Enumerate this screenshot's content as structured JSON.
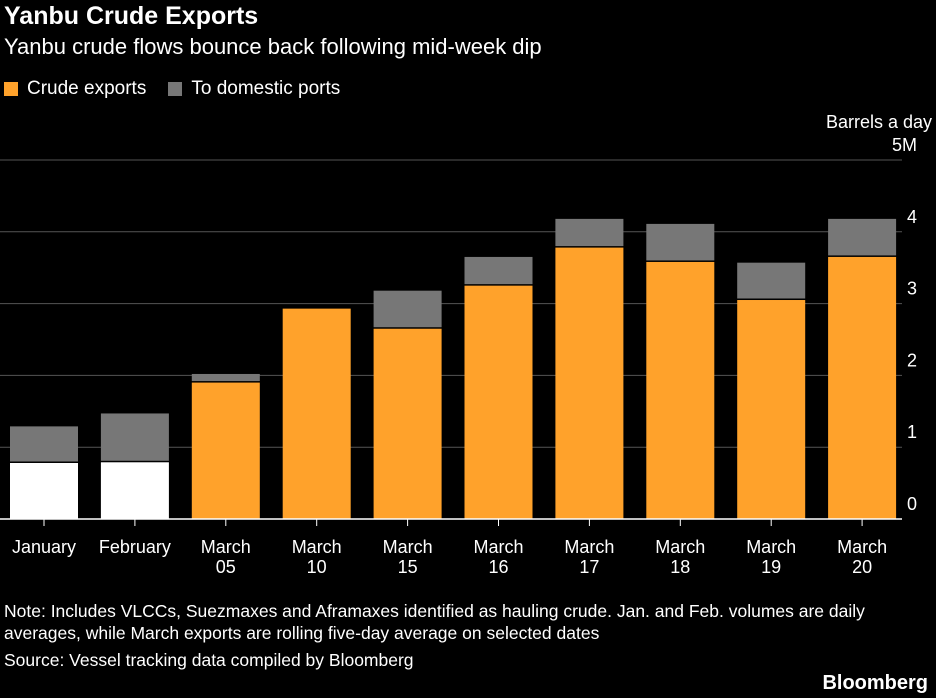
{
  "title": "Yanbu Crude Exports",
  "subtitle": "Yanbu crude flows bounce back following mid-week dip",
  "legend": [
    {
      "label": "Crude exports",
      "color": "#ffa22b"
    },
    {
      "label": "To domestic ports",
      "color": "#777777"
    }
  ],
  "unit_label": "Barrels a day",
  "note": "Note: Includes VLCCs, Suezmaxes and Aframaxes identified as hauling crude. Jan. and Feb. volumes are daily averages, while March exports are rolling five-day average on selected dates",
  "source": "Source: Vessel tracking data compiled by Bloomberg",
  "brand": "Bloomberg",
  "chart_data": {
    "type": "bar",
    "stacked": true,
    "title": "Yanbu Crude Exports",
    "ylabel": "Barrels a day",
    "ylim": [
      0,
      5
    ],
    "yticks": [
      {
        "value": 0,
        "label": "0"
      },
      {
        "value": 1,
        "label": "1"
      },
      {
        "value": 2,
        "label": "2"
      },
      {
        "value": 3,
        "label": "3"
      },
      {
        "value": 4,
        "label": "4"
      },
      {
        "value": 5,
        "label": "5M"
      }
    ],
    "categories": [
      [
        "January"
      ],
      [
        "February"
      ],
      [
        "March",
        "05"
      ],
      [
        "March",
        "10"
      ],
      [
        "March",
        "15"
      ],
      [
        "March",
        "16"
      ],
      [
        "March",
        "17"
      ],
      [
        "March",
        "18"
      ],
      [
        "March",
        "19"
      ],
      [
        "March",
        "20"
      ]
    ],
    "series": [
      {
        "name": "Crude exports",
        "color": "#ffa22b",
        "alt_color": "#ffffff",
        "alt_indices": [
          0,
          1
        ],
        "values": [
          0.78,
          0.79,
          1.9,
          2.93,
          2.65,
          3.25,
          3.78,
          3.58,
          3.05,
          3.65
        ]
      },
      {
        "name": "To domestic ports",
        "color": "#777777",
        "values": [
          0.51,
          0.68,
          0.12,
          0.0,
          0.53,
          0.4,
          0.4,
          0.53,
          0.52,
          0.53
        ]
      }
    ]
  }
}
